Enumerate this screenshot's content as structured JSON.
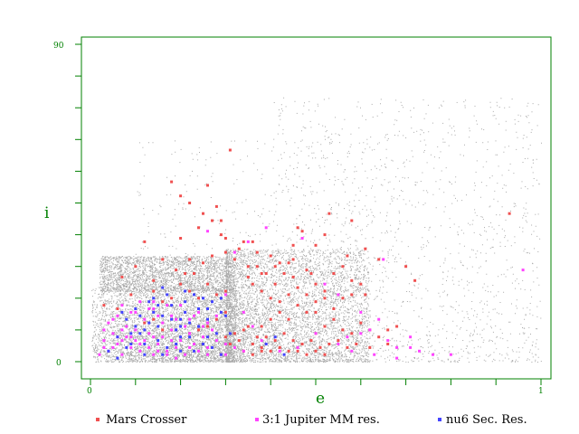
{
  "chart_data": {
    "type": "scatter",
    "xlabel": "e",
    "ylabel": "i",
    "xlim": [
      0,
      1
    ],
    "ylim": [
      0,
      90
    ],
    "x_tick_labels": [
      "0",
      "1"
    ],
    "y_tick_labels": [
      "0",
      "90"
    ],
    "grid": false,
    "legend_position": "bottom",
    "colors": {
      "axis": "#008000",
      "background": "#c0c0c0",
      "mars": "#f05050",
      "jupiter": "#ff44ff",
      "nu6": "#4444ff"
    },
    "background_cloud": {
      "color": "#a9a9a9",
      "regions": [
        {
          "e": [
            0.0,
            0.32
          ],
          "i": [
            0,
            22
          ],
          "density": "very high"
        },
        {
          "e": [
            0.32,
            0.6
          ],
          "i": [
            0,
            30
          ],
          "density": "medium"
        },
        {
          "e": [
            0.6,
            1.0
          ],
          "i": [
            0,
            80
          ],
          "density": "sparse"
        }
      ]
    },
    "series": [
      {
        "name": "Mars Crosser",
        "color": "#f05050",
        "points": [
          [
            0.31,
            60
          ],
          [
            0.18,
            51
          ],
          [
            0.2,
            47
          ],
          [
            0.22,
            45
          ],
          [
            0.26,
            50
          ],
          [
            0.28,
            44
          ],
          [
            0.37,
            31
          ],
          [
            0.27,
            40
          ],
          [
            0.29,
            36
          ],
          [
            0.58,
            40
          ],
          [
            0.53,
            42
          ],
          [
            0.52,
            36
          ],
          [
            0.47,
            37
          ],
          [
            0.45,
            33
          ],
          [
            0.5,
            33
          ],
          [
            0.2,
            35
          ],
          [
            0.16,
            29
          ],
          [
            0.12,
            34
          ],
          [
            0.25,
            42
          ],
          [
            0.24,
            38
          ],
          [
            0.3,
            35
          ],
          [
            0.34,
            34
          ],
          [
            0.33,
            32
          ],
          [
            0.36,
            34
          ],
          [
            0.25,
            28
          ],
          [
            0.27,
            30
          ],
          [
            0.22,
            29
          ],
          [
            0.21,
            25
          ],
          [
            0.19,
            26
          ],
          [
            0.23,
            25
          ],
          [
            0.32,
            29
          ],
          [
            0.35,
            27
          ],
          [
            0.37,
            27
          ],
          [
            0.39,
            25
          ],
          [
            0.41,
            22
          ],
          [
            0.43,
            25
          ],
          [
            0.45,
            24
          ],
          [
            0.48,
            26
          ],
          [
            0.49,
            25
          ],
          [
            0.42,
            28
          ],
          [
            0.44,
            28
          ],
          [
            0.41,
            27
          ],
          [
            0.38,
            25
          ],
          [
            0.36,
            22
          ],
          [
            0.35,
            24
          ],
          [
            0.5,
            22
          ],
          [
            0.52,
            20
          ],
          [
            0.54,
            25
          ],
          [
            0.56,
            27
          ],
          [
            0.58,
            23
          ],
          [
            0.6,
            22
          ],
          [
            0.61,
            19
          ],
          [
            0.58,
            19
          ],
          [
            0.56,
            18
          ],
          [
            0.54,
            15
          ],
          [
            0.52,
            18
          ],
          [
            0.5,
            14
          ],
          [
            0.48,
            14
          ],
          [
            0.46,
            16
          ],
          [
            0.44,
            12
          ],
          [
            0.42,
            14
          ],
          [
            0.4,
            12
          ],
          [
            0.38,
            10
          ],
          [
            0.35,
            10
          ],
          [
            0.37,
            7
          ],
          [
            0.39,
            7
          ],
          [
            0.41,
            6
          ],
          [
            0.43,
            8
          ],
          [
            0.45,
            6
          ],
          [
            0.47,
            5
          ],
          [
            0.49,
            6
          ],
          [
            0.5,
            8
          ],
          [
            0.52,
            10
          ],
          [
            0.54,
            12
          ],
          [
            0.56,
            9
          ],
          [
            0.58,
            8
          ],
          [
            0.6,
            11
          ],
          [
            0.62,
            9
          ],
          [
            0.64,
            7
          ],
          [
            0.66,
            9
          ],
          [
            0.68,
            10
          ],
          [
            0.66,
            5
          ],
          [
            0.62,
            4
          ],
          [
            0.59,
            5
          ],
          [
            0.57,
            4
          ],
          [
            0.55,
            6
          ],
          [
            0.53,
            5
          ],
          [
            0.51,
            4
          ],
          [
            0.33,
            6
          ],
          [
            0.31,
            5
          ],
          [
            0.3,
            7
          ],
          [
            0.32,
            8
          ],
          [
            0.34,
            9
          ],
          [
            0.36,
            5
          ],
          [
            0.38,
            4
          ],
          [
            0.4,
            3
          ],
          [
            0.42,
            4
          ],
          [
            0.44,
            3
          ],
          [
            0.46,
            3
          ],
          [
            0.48,
            2
          ],
          [
            0.5,
            3
          ],
          [
            0.52,
            2
          ],
          [
            0.34,
            3
          ],
          [
            0.36,
            2
          ],
          [
            0.38,
            3
          ],
          [
            0.12,
            11
          ],
          [
            0.14,
            20
          ],
          [
            0.18,
            18
          ],
          [
            0.2,
            22
          ],
          [
            0.22,
            20
          ],
          [
            0.26,
            22
          ],
          [
            0.28,
            19
          ],
          [
            0.3,
            20
          ],
          [
            0.24,
            18
          ],
          [
            0.16,
            17
          ],
          [
            0.14,
            23
          ],
          [
            0.09,
            19
          ],
          [
            0.07,
            24
          ],
          [
            0.06,
            15
          ],
          [
            0.03,
            16
          ],
          [
            0.1,
            27
          ],
          [
            0.38,
            20
          ],
          [
            0.4,
            18
          ],
          [
            0.42,
            17
          ],
          [
            0.44,
            19
          ],
          [
            0.46,
            21
          ],
          [
            0.48,
            19
          ],
          [
            0.5,
            17
          ],
          [
            0.3,
            14
          ],
          [
            0.28,
            12
          ],
          [
            0.26,
            10
          ],
          [
            0.24,
            9
          ],
          [
            0.22,
            8
          ],
          [
            0.16,
            9
          ],
          [
            0.14,
            12
          ],
          [
            0.93,
            42
          ],
          [
            0.64,
            29
          ],
          [
            0.7,
            27
          ],
          [
            0.72,
            23
          ],
          [
            0.61,
            32
          ],
          [
            0.45,
            29
          ],
          [
            0.4,
            30
          ],
          [
            0.57,
            30
          ],
          [
            0.46,
            38
          ],
          [
            0.29,
            40
          ],
          [
            0.3,
            31
          ]
        ]
      },
      {
        "name": "3:1 Jupiter MM res.",
        "color": "#ff44ff",
        "points": [
          [
            0.03,
            6
          ],
          [
            0.04,
            3
          ],
          [
            0.05,
            8
          ],
          [
            0.06,
            5
          ],
          [
            0.07,
            2
          ],
          [
            0.08,
            7
          ],
          [
            0.09,
            4
          ],
          [
            0.1,
            9
          ],
          [
            0.11,
            3
          ],
          [
            0.12,
            6
          ],
          [
            0.13,
            8
          ],
          [
            0.14,
            2
          ],
          [
            0.15,
            5
          ],
          [
            0.16,
            7
          ],
          [
            0.17,
            3
          ],
          [
            0.18,
            9
          ],
          [
            0.19,
            4
          ],
          [
            0.2,
            6
          ],
          [
            0.21,
            2
          ],
          [
            0.22,
            8
          ],
          [
            0.23,
            5
          ],
          [
            0.24,
            3
          ],
          [
            0.25,
            7
          ],
          [
            0.26,
            4
          ],
          [
            0.27,
            9
          ],
          [
            0.28,
            6
          ],
          [
            0.29,
            2
          ],
          [
            0.3,
            5
          ],
          [
            0.04,
            11
          ],
          [
            0.06,
            13
          ],
          [
            0.08,
            10
          ],
          [
            0.1,
            14
          ],
          [
            0.12,
            12
          ],
          [
            0.14,
            15
          ],
          [
            0.16,
            11
          ],
          [
            0.18,
            13
          ],
          [
            0.2,
            16
          ],
          [
            0.22,
            12
          ],
          [
            0.24,
            14
          ],
          [
            0.26,
            11
          ],
          [
            0.28,
            13
          ],
          [
            0.03,
            9
          ],
          [
            0.05,
            12
          ],
          [
            0.07,
            16
          ],
          [
            0.09,
            14
          ],
          [
            0.11,
            17
          ],
          [
            0.13,
            15
          ],
          [
            0.15,
            13
          ],
          [
            0.17,
            16
          ],
          [
            0.19,
            12
          ],
          [
            0.21,
            10
          ],
          [
            0.23,
            13
          ],
          [
            0.25,
            10
          ],
          [
            0.02,
            2
          ],
          [
            0.03,
            4
          ],
          [
            0.05,
            4
          ],
          [
            0.07,
            6
          ],
          [
            0.09,
            7
          ],
          [
            0.11,
            5
          ],
          [
            0.13,
            4
          ],
          [
            0.15,
            3
          ],
          [
            0.17,
            2
          ],
          [
            0.19,
            1
          ],
          [
            0.06,
            7
          ],
          [
            0.1,
            6
          ],
          [
            0.14,
            7
          ],
          [
            0.18,
            6
          ],
          [
            0.22,
            4
          ],
          [
            0.26,
            2
          ],
          [
            0.3,
            2
          ],
          [
            0.32,
            4
          ],
          [
            0.34,
            3
          ],
          [
            0.38,
            6
          ],
          [
            0.42,
            3
          ],
          [
            0.46,
            4
          ],
          [
            0.5,
            8
          ],
          [
            0.55,
            5
          ],
          [
            0.58,
            3
          ],
          [
            0.6,
            8
          ],
          [
            0.63,
            2
          ],
          [
            0.66,
            6
          ],
          [
            0.68,
            1
          ],
          [
            0.71,
            4
          ],
          [
            0.73,
            3
          ],
          [
            0.76,
            2
          ],
          [
            0.8,
            2
          ],
          [
            0.64,
            12
          ],
          [
            0.6,
            14
          ],
          [
            0.55,
            19
          ],
          [
            0.52,
            22
          ],
          [
            0.47,
            35
          ],
          [
            0.39,
            38
          ],
          [
            0.35,
            34
          ],
          [
            0.32,
            31
          ],
          [
            0.26,
            37
          ],
          [
            0.65,
            29
          ],
          [
            0.96,
            26
          ],
          [
            0.71,
            7
          ],
          [
            0.68,
            4
          ],
          [
            0.36,
            10
          ],
          [
            0.62,
            9
          ],
          [
            0.57,
            7
          ],
          [
            0.34,
            14
          ],
          [
            0.3,
            19
          ],
          [
            0.14,
            17
          ],
          [
            0.07,
            9
          ]
        ]
      },
      {
        "name": "nu6 Sec. Res.",
        "color": "#4444ff",
        "points": [
          [
            0.04,
            3
          ],
          [
            0.06,
            7
          ],
          [
            0.08,
            12
          ],
          [
            0.09,
            5
          ],
          [
            0.1,
            15
          ],
          [
            0.11,
            8
          ],
          [
            0.12,
            2
          ],
          [
            0.13,
            11
          ],
          [
            0.14,
            18
          ],
          [
            0.15,
            6
          ],
          [
            0.16,
            13
          ],
          [
            0.17,
            4
          ],
          [
            0.18,
            16
          ],
          [
            0.19,
            9
          ],
          [
            0.2,
            3
          ],
          [
            0.21,
            14
          ],
          [
            0.22,
            7
          ],
          [
            0.23,
            19
          ],
          [
            0.24,
            10
          ],
          [
            0.25,
            5
          ],
          [
            0.26,
            12
          ],
          [
            0.27,
            17
          ],
          [
            0.28,
            8
          ],
          [
            0.29,
            2
          ],
          [
            0.3,
            13
          ],
          [
            0.08,
            4
          ],
          [
            0.12,
            9
          ],
          [
            0.16,
            2
          ],
          [
            0.2,
            10
          ],
          [
            0.24,
            15
          ],
          [
            0.14,
            14
          ],
          [
            0.18,
            12
          ],
          [
            0.22,
            11
          ],
          [
            0.26,
            7
          ],
          [
            0.1,
            10
          ],
          [
            0.13,
            17
          ],
          [
            0.17,
            19
          ],
          [
            0.21,
            17
          ],
          [
            0.25,
            18
          ],
          [
            0.29,
            14
          ],
          [
            0.2,
            7
          ],
          [
            0.23,
            3
          ],
          [
            0.15,
            10
          ],
          [
            0.11,
            13
          ],
          [
            0.19,
            5
          ],
          [
            0.27,
            4
          ],
          [
            0.31,
            8
          ],
          [
            0.07,
            14
          ],
          [
            0.21,
            20
          ],
          [
            0.16,
            21
          ],
          [
            0.39,
            5
          ],
          [
            0.41,
            7
          ],
          [
            0.43,
            2
          ],
          [
            0.29,
            18
          ],
          [
            0.06,
            1
          ],
          [
            0.12,
            5
          ],
          [
            0.09,
            8
          ],
          [
            0.15,
            16
          ],
          [
            0.26,
            15
          ],
          [
            0.2,
            12
          ]
        ]
      }
    ]
  }
}
